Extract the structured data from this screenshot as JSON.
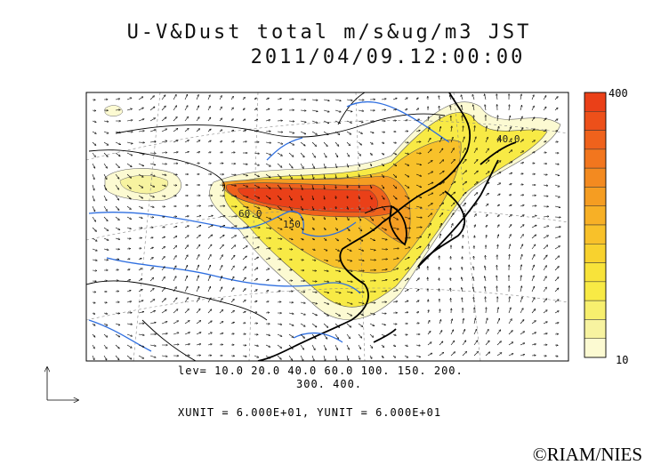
{
  "title": {
    "line1": "U-V&Dust total m/s&ug/m3 JST",
    "line2": "2011/04/09.12:00:00"
  },
  "color_scale": {
    "max_label": "400",
    "min_label": "10",
    "colors": [
      "#fcfad2",
      "#f7f3a0",
      "#f7ef6e",
      "#f8ea45",
      "#f8e33a",
      "#f8d22e",
      "#f8c12a",
      "#f7b026",
      "#f59d22",
      "#f38a20",
      "#f2761e",
      "#ef621c",
      "#ed501a",
      "#ea4018"
    ]
  },
  "contour_labels": {
    "north_east": "40.0",
    "central": "150",
    "west": "60.0"
  },
  "levels_text": {
    "line1": "lev= 10.0 20.0 40.0 60.0 100. 150. 200.",
    "line2": "300. 400."
  },
  "unit_text": "XUNIT = 6.000E+01, YUNIT = 6.000E+01",
  "copyright": "©RIAM/NIES"
}
